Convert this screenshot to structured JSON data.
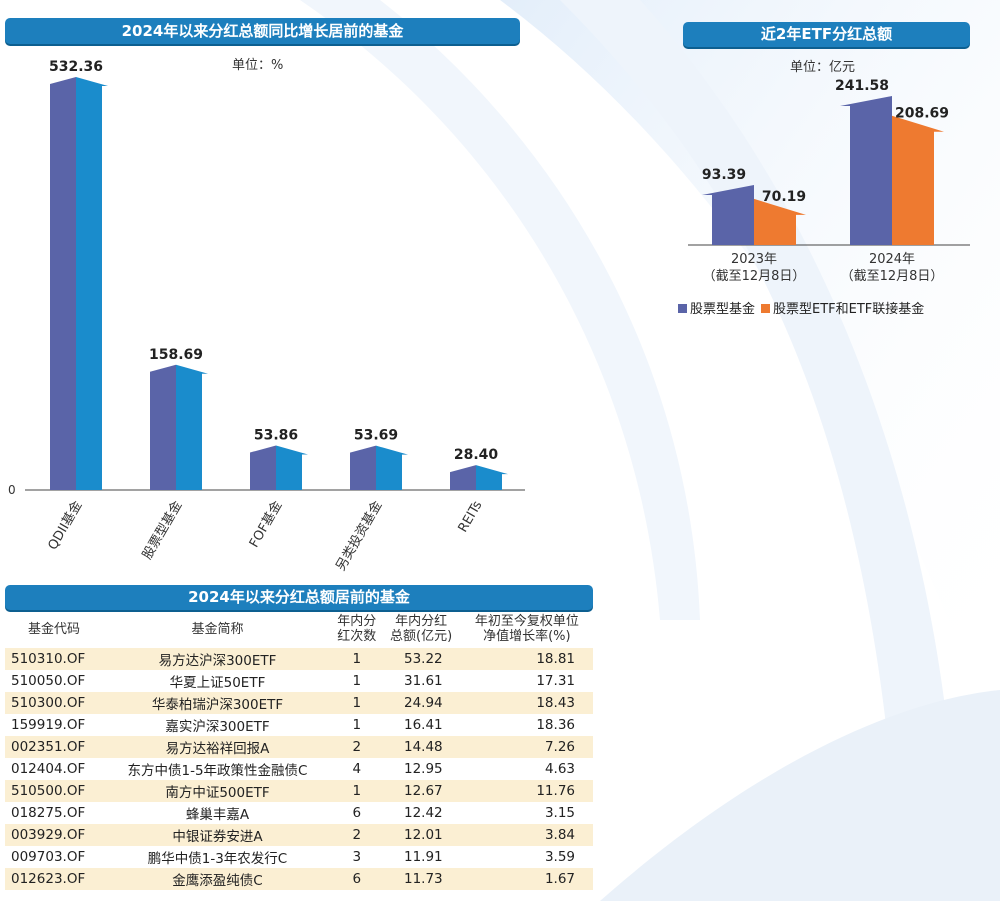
{
  "chart_data": [
    {
      "type": "bar",
      "title": "2024年以来分红总额同比增长居前的基金",
      "unit": "单位：%",
      "categories": [
        "QDII基金",
        "股票型基金",
        "FOF基金",
        "另类投资基金",
        "REITs"
      ],
      "values": [
        532.36,
        158.69,
        53.86,
        53.69,
        28.4
      ],
      "value_labels": [
        "532.36",
        "158.69",
        "53.86",
        "53.69",
        "28.40"
      ],
      "ytick": "0",
      "ylim": [
        0,
        532.36
      ]
    },
    {
      "type": "bar",
      "title": "近2年ETF分红总额",
      "unit": "单位：亿元",
      "categories": [
        {
          "year": "2023年",
          "note": "（截至12月8日）"
        },
        {
          "year": "2024年",
          "note": "（截至12月8日）"
        }
      ],
      "series": [
        {
          "name": "股票型基金",
          "color": "#5a64a8",
          "values": [
            93.39,
            241.58
          ],
          "labels": [
            "93.39",
            "241.58"
          ]
        },
        {
          "name": "股票型ETF和ETF联接基金",
          "color": "#ee7a30",
          "values": [
            70.19,
            208.69
          ],
          "labels": [
            "70.19",
            "208.69"
          ]
        }
      ],
      "ylim": [
        0,
        241.58
      ],
      "legend": "bottom"
    }
  ],
  "table": {
    "title": "2024年以来分红总额居前的基金",
    "headers": [
      [
        "基金代码"
      ],
      [
        "基金简称"
      ],
      [
        "年内分",
        "红次数"
      ],
      [
        "年内分红",
        "总额(亿元)"
      ],
      [
        "年初至今复权单位",
        "净值增长率(%)"
      ]
    ],
    "rows": [
      [
        "510310.OF",
        "易方达沪深300ETF",
        "1",
        "53.22",
        "18.81"
      ],
      [
        "510050.OF",
        "华夏上证50ETF",
        "1",
        "31.61",
        "17.31"
      ],
      [
        "510300.OF",
        "华泰柏瑞沪深300ETF",
        "1",
        "24.94",
        "18.43"
      ],
      [
        "159919.OF",
        "嘉实沪深300ETF",
        "1",
        "16.41",
        "18.36"
      ],
      [
        "002351.OF",
        "易方达裕祥回报A",
        "2",
        "14.48",
        "7.26"
      ],
      [
        "012404.OF",
        "东方中债1-5年政策性金融债C",
        "4",
        "12.95",
        "4.63"
      ],
      [
        "510500.OF",
        "南方中证500ETF",
        "1",
        "12.67",
        "11.76"
      ],
      [
        "018275.OF",
        "蜂巢丰嘉A",
        "6",
        "12.42",
        "3.15"
      ],
      [
        "003929.OF",
        "中银证券安进A",
        "2",
        "12.01",
        "3.84"
      ],
      [
        "009703.OF",
        "鹏华中债1-3年农发行C",
        "3",
        "11.91",
        "3.59"
      ],
      [
        "012623.OF",
        "金鹰添盈纯债C",
        "6",
        "11.73",
        "1.67"
      ]
    ]
  },
  "colors": {
    "title_bar": "#1d7fbd",
    "bar_left": "#5a64a8",
    "bar_right": "#1a8ccc",
    "orange": "#ee7a30",
    "row_alt": "#fbefd3"
  }
}
